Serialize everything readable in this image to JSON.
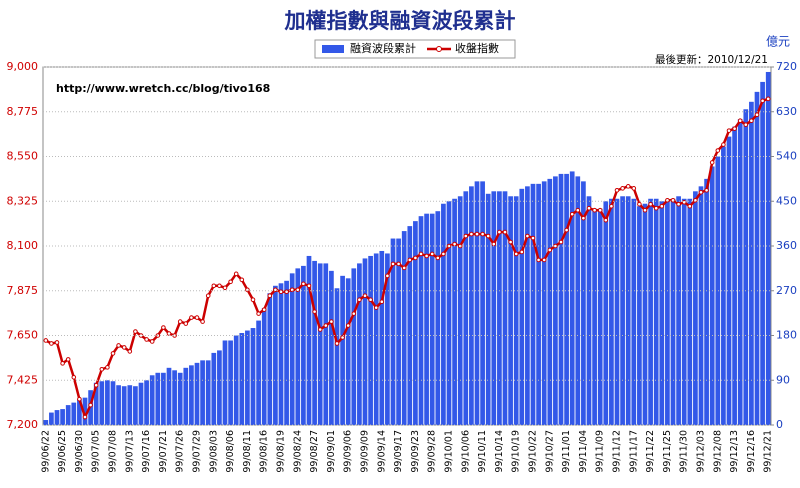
{
  "chart_data": {
    "type": "bar",
    "title": "加權指數與融資波段累計",
    "y2_label": "億元",
    "annotations": [
      "最後更新：2010/12/21",
      "http://www.wretch.cc/blog/tivo168"
    ],
    "grid": true,
    "legend": "top",
    "categories": [
      "99/06/22",
      null,
      null,
      "99/06/25",
      null,
      null,
      "99/06/30",
      null,
      null,
      "99/07/05",
      null,
      null,
      "99/07/08",
      null,
      null,
      "99/07/13",
      null,
      null,
      "99/07/16",
      null,
      null,
      "99/07/21",
      null,
      null,
      "99/07/26",
      null,
      null,
      "99/07/29",
      null,
      null,
      "99/08/03",
      null,
      null,
      "99/08/06",
      null,
      null,
      "99/08/11",
      null,
      null,
      "99/08/16",
      null,
      null,
      "99/08/19",
      null,
      null,
      "99/08/24",
      null,
      null,
      "99/08/27",
      null,
      null,
      "99/09/01",
      null,
      null,
      "99/09/06",
      null,
      null,
      "99/09/09",
      null,
      null,
      "99/09/14",
      null,
      null,
      "99/09/17",
      null,
      null,
      "99/09/23",
      null,
      null,
      "99/09/28",
      null,
      null,
      "99/10/01",
      null,
      null,
      "99/10/06",
      null,
      null,
      "99/10/11",
      null,
      null,
      "99/10/14",
      null,
      null,
      "99/10/19",
      null,
      null,
      "99/10/22",
      null,
      null,
      "99/10/27",
      null,
      null,
      "99/11/01",
      null,
      null,
      "99/11/04",
      null,
      null,
      "99/11/09",
      null,
      null,
      "99/11/12",
      null,
      null,
      "99/11/17",
      null,
      null,
      "99/11/22",
      null,
      null,
      "99/11/25",
      null,
      null,
      "99/11/30",
      null,
      null,
      "99/12/03",
      null,
      null,
      "99/12/08",
      null,
      null,
      "99/12/13",
      null,
      null,
      "99/12/16",
      null,
      null,
      "99/12/21"
    ],
    "series": [
      {
        "name": "融資波段累計",
        "type": "bar",
        "axis": "y2",
        "color": "#3358e8",
        "values": [
          10,
          25,
          30,
          32,
          40,
          45,
          52,
          55,
          70,
          85,
          88,
          90,
          88,
          80,
          78,
          80,
          78,
          85,
          90,
          100,
          105,
          105,
          115,
          110,
          105,
          115,
          120,
          125,
          130,
          130,
          145,
          150,
          170,
          170,
          180,
          185,
          190,
          195,
          210,
          235,
          265,
          280,
          285,
          290,
          305,
          315,
          320,
          340,
          330,
          325,
          325,
          310,
          275,
          300,
          295,
          315,
          325,
          335,
          340,
          345,
          350,
          345,
          375,
          375,
          390,
          400,
          410,
          420,
          425,
          425,
          430,
          445,
          450,
          455,
          460,
          470,
          480,
          490,
          490,
          465,
          470,
          470,
          470,
          460,
          460,
          475,
          480,
          485,
          485,
          490,
          495,
          500,
          505,
          505,
          510,
          500,
          490,
          460,
          435,
          435,
          450,
          455,
          455,
          460,
          460,
          455,
          440,
          445,
          455,
          455,
          450,
          450,
          455,
          460,
          455,
          455,
          470,
          480,
          495,
          520,
          540,
          560,
          580,
          600,
          615,
          635,
          650,
          670,
          690,
          710
        ]
      },
      {
        "name": "收盤指數",
        "type": "line",
        "color": "#cc0000",
        "values": [
          7625,
          7610,
          7615,
          7510,
          7530,
          7440,
          7330,
          7240,
          7300,
          7400,
          7480,
          7490,
          7560,
          7600,
          7590,
          7570,
          7670,
          7650,
          7630,
          7620,
          7650,
          7690,
          7660,
          7650,
          7720,
          7710,
          7740,
          7740,
          7720,
          7850,
          7900,
          7900,
          7890,
          7920,
          7960,
          7930,
          7880,
          7830,
          7760,
          7780,
          7850,
          7880,
          7870,
          7870,
          7880,
          7880,
          7910,
          7900,
          7770,
          7680,
          7700,
          7720,
          7610,
          7640,
          7700,
          7760,
          7830,
          7850,
          7830,
          7790,
          7820,
          7950,
          8010,
          8010,
          7990,
          8030,
          8040,
          8060,
          8050,
          8060,
          8040,
          8060,
          8100,
          8110,
          8100,
          8150,
          8160,
          8160,
          8160,
          8150,
          8110,
          8170,
          8170,
          8120,
          8060,
          8070,
          8150,
          8140,
          8030,
          8030,
          8080,
          8100,
          8120,
          8180,
          8260,
          8280,
          8240,
          8290,
          8280,
          8280,
          8230,
          8300,
          8380,
          8390,
          8400,
          8390,
          8310,
          8280,
          8310,
          8290,
          8300,
          8330,
          8330,
          8310,
          8320,
          8300,
          8330,
          8370,
          8380,
          8520,
          8580,
          8610,
          8680,
          8690,
          8730,
          8710,
          8730,
          8760,
          8830,
          8840
        ]
      }
    ],
    "ylim": [
      7200,
      9000
    ],
    "yticks": [
      {
        "value": 7200,
        "label": "7,200"
      },
      {
        "value": 7425,
        "label": "7,425"
      },
      {
        "value": 7650,
        "label": "7,650"
      },
      {
        "value": 7875,
        "label": "7,875"
      },
      {
        "value": 8100,
        "label": "8,100"
      },
      {
        "value": 8325,
        "label": "8,325"
      },
      {
        "value": 8550,
        "label": "8,550"
      },
      {
        "value": 8775,
        "label": "8,775"
      },
      {
        "value": 9000,
        "label": "9,000"
      }
    ],
    "y2lim": [
      0,
      720
    ],
    "y2ticks": [
      0,
      90,
      180,
      270,
      360,
      450,
      540,
      630,
      720
    ]
  }
}
